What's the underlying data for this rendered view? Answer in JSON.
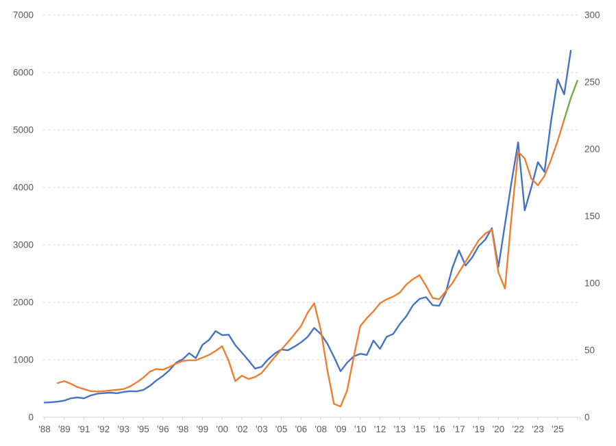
{
  "chart_data": {
    "type": "line",
    "title": "",
    "legend": "none",
    "grid": {
      "horizontal": true,
      "dashed": true,
      "color": "#D9D9D9"
    },
    "axis_text_color": "#595959",
    "axis_line_color": "#D9D9D9",
    "x_axis": {
      "labels": [
        "'88",
        "'89",
        "'91",
        "'92",
        "'93",
        "'95",
        "'96",
        "'98",
        "'99",
        "'00",
        "'02",
        "'03",
        "'05",
        "'06",
        "'08",
        "'09",
        "'10",
        "'12",
        "'13",
        "'15",
        "'16",
        "'17",
        "'19",
        "'20",
        "'22",
        "'23",
        "'25"
      ],
      "label_every_n_points": 3
    },
    "y_axis_left": {
      "min": 0,
      "max": 7000,
      "step": 1000,
      "tick_labels": [
        "0",
        "1000",
        "2000",
        "3000",
        "4000",
        "5000",
        "6000",
        "7000"
      ]
    },
    "y_axis_right": {
      "min": 0,
      "max": 300,
      "step": 50,
      "tick_labels": [
        "0",
        "50",
        "100",
        "150",
        "200",
        "250",
        "300"
      ]
    },
    "series": [
      {
        "name": "blue-series",
        "axis": "left",
        "color": "#4472C4",
        "values": [
          255,
          262,
          272,
          290,
          330,
          345,
          330,
          380,
          410,
          420,
          428,
          418,
          440,
          455,
          450,
          475,
          545,
          640,
          720,
          820,
          950,
          1010,
          1115,
          1030,
          1260,
          1345,
          1500,
          1430,
          1437,
          1255,
          1125,
          990,
          848,
          878,
          1010,
          1110,
          1180,
          1165,
          1230,
          1305,
          1400,
          1555,
          1450,
          1280,
          1050,
          800,
          950,
          1060,
          1105,
          1085,
          1335,
          1190,
          1400,
          1450,
          1620,
          1760,
          1950,
          2060,
          2090,
          1950,
          1940,
          2170,
          2600,
          2905,
          2640,
          2780,
          2980,
          3090,
          3290,
          2615,
          3360,
          4100,
          4785,
          3600,
          4000,
          4440,
          4270,
          5150,
          5880,
          5620,
          6380,
          null
        ]
      },
      {
        "name": "orange-series",
        "axis": "right",
        "color": "#ED7D31",
        "values": [
          null,
          null,
          25.5,
          27,
          25,
          22.5,
          21,
          19.5,
          19.2,
          19.5,
          20,
          20.5,
          21,
          23,
          26,
          29.5,
          34,
          36,
          35.5,
          37.5,
          40,
          42,
          42.5,
          42.5,
          44.5,
          46.5,
          49.5,
          53,
          42,
          27,
          31,
          28.5,
          30,
          33,
          39,
          45,
          50.5,
          56,
          62,
          68,
          78,
          85,
          65,
          35,
          10,
          8,
          20,
          45,
          68,
          74,
          79,
          85,
          88,
          90,
          93,
          99,
          103,
          106,
          98,
          89,
          88,
          94,
          100,
          108,
          116,
          124,
          132,
          137,
          140,
          108,
          96,
          150,
          198,
          193,
          178,
          173,
          180,
          192,
          206,
          222,
          null,
          null
        ]
      },
      {
        "name": "green-series",
        "axis": "right",
        "color": "#70AD47",
        "values": [
          null,
          null,
          null,
          null,
          null,
          null,
          null,
          null,
          null,
          null,
          null,
          null,
          null,
          null,
          null,
          null,
          null,
          null,
          null,
          null,
          null,
          null,
          null,
          null,
          null,
          null,
          null,
          null,
          null,
          null,
          null,
          null,
          null,
          null,
          null,
          null,
          null,
          null,
          null,
          null,
          null,
          null,
          null,
          null,
          null,
          null,
          null,
          null,
          null,
          null,
          null,
          null,
          null,
          null,
          null,
          null,
          null,
          null,
          null,
          null,
          null,
          null,
          null,
          null,
          null,
          null,
          null,
          null,
          null,
          null,
          null,
          null,
          null,
          null,
          null,
          null,
          null,
          null,
          null,
          222,
          238,
          251
        ]
      }
    ]
  }
}
